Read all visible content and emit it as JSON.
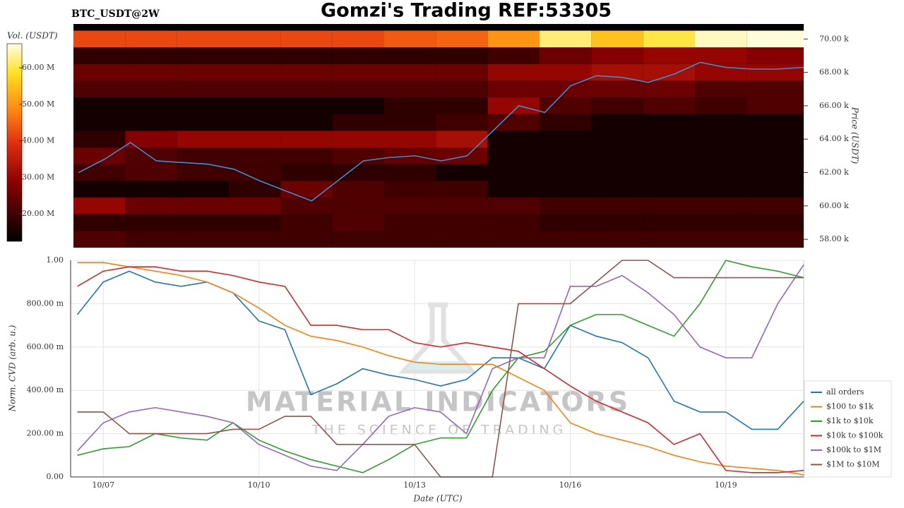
{
  "chart_data": [
    {
      "type": "heatmap",
      "title": "Gomzi's Trading REF:53305",
      "subtitle": "BTC_USDT@2W",
      "ylabel": "Price (USDT)",
      "xlim": [
        6.4,
        20.5
      ],
      "ylim": [
        57.5,
        70.9
      ],
      "yticks": [
        {
          "value": 58,
          "label": "58.00 k"
        },
        {
          "value": 60,
          "label": "60.00 k"
        },
        {
          "value": 62,
          "label": "62.00 k"
        },
        {
          "value": 64,
          "label": "64.00 k"
        },
        {
          "value": 66,
          "label": "66.00 k"
        },
        {
          "value": 68,
          "label": "68.00 k"
        },
        {
          "value": 70,
          "label": "70.00 k"
        }
      ],
      "xbins": [
        6.4,
        7.4,
        8.4,
        9.4,
        10.4,
        11.4,
        12.4,
        13.4,
        14.4,
        15.4,
        16.4,
        17.4,
        18.4,
        19.4,
        20.5
      ],
      "ybins": [
        57.5,
        58.5,
        59.5,
        60.5,
        61.5,
        62.5,
        63.5,
        64.5,
        65.5,
        66.5,
        67.5,
        68.5,
        69.5,
        70.5
      ],
      "z": [
        [
          22,
          20,
          20,
          20,
          20,
          20,
          20,
          20,
          20,
          20,
          20,
          20,
          20,
          20
        ],
        [
          18,
          18,
          18,
          18,
          20,
          22,
          20,
          20,
          20,
          18,
          18,
          18,
          18,
          18
        ],
        [
          30,
          25,
          25,
          25,
          22,
          22,
          22,
          22,
          22,
          20,
          20,
          20,
          20,
          20
        ],
        [
          15,
          15,
          15,
          18,
          25,
          22,
          20,
          20,
          15,
          15,
          15,
          15,
          15,
          15
        ],
        [
          20,
          22,
          20,
          20,
          18,
          18,
          18,
          15,
          15,
          15,
          15,
          15,
          15,
          15
        ],
        [
          25,
          22,
          20,
          20,
          20,
          22,
          24,
          25,
          15,
          15,
          15,
          15,
          15,
          15
        ],
        [
          18,
          28,
          30,
          30,
          30,
          30,
          30,
          32,
          15,
          15,
          15,
          15,
          15,
          15
        ],
        [
          15,
          15,
          15,
          15,
          15,
          18,
          18,
          20,
          22,
          18,
          15,
          15,
          15,
          15
        ],
        [
          15,
          15,
          15,
          15,
          15,
          15,
          18,
          18,
          30,
          22,
          20,
          22,
          20,
          22
        ],
        [
          22,
          22,
          22,
          22,
          22,
          22,
          22,
          22,
          25,
          25,
          25,
          25,
          22,
          22
        ],
        [
          25,
          25,
          25,
          25,
          25,
          25,
          25,
          25,
          30,
          30,
          32,
          32,
          30,
          30
        ],
        [
          18,
          18,
          18,
          18,
          18,
          18,
          18,
          18,
          20,
          25,
          28,
          30,
          30,
          28
        ],
        [
          42,
          42,
          42,
          42,
          42,
          42,
          44,
          45,
          50,
          62,
          55,
          60,
          65,
          66
        ]
      ],
      "colorbar": {
        "label": "Vol. (USDT)",
        "clim": [
          12.5,
          66.6
        ],
        "ticks": [
          {
            "value": 20,
            "label": "20.00 M"
          },
          {
            "value": 30,
            "label": "30.00 M"
          },
          {
            "value": 40,
            "label": "40.00 M"
          },
          {
            "value": 50,
            "label": "50.00 M"
          },
          {
            "value": 60,
            "label": "60.00 M"
          }
        ]
      },
      "x": [
        6.5,
        7,
        7.5,
        8,
        8.5,
        9,
        9.5,
        10,
        10.5,
        11,
        11.5,
        12,
        12.5,
        13,
        13.5,
        14,
        14.5,
        15,
        15.5,
        16,
        16.5,
        17,
        17.5,
        18,
        18.5,
        19,
        19.5,
        20,
        20.5
      ],
      "line": {
        "color": "#3a8fd0",
        "values": [
          62.0,
          62.8,
          63.8,
          62.7,
          62.6,
          62.5,
          62.2,
          61.5,
          60.9,
          60.3,
          61.5,
          62.7,
          62.9,
          63.0,
          62.7,
          63.0,
          64.5,
          66.0,
          65.6,
          67.2,
          67.8,
          67.7,
          67.4,
          67.9,
          68.6,
          68.3,
          68.2,
          68.2,
          68.3
        ]
      }
    },
    {
      "type": "line",
      "xlabel": "Date (UTC)",
      "ylabel": "Norm. CVD (arb. u.)",
      "annotations": [
        "MATERIAL INDICATORS",
        "THE SCIENCE OF TRADING"
      ],
      "xlim": [
        6.37,
        20.5
      ],
      "ylim": [
        0,
        1
      ],
      "grid": true,
      "legend": "lower right",
      "xticks": [
        {
          "value": 7,
          "label": "10/07"
        },
        {
          "value": 10,
          "label": "10/10"
        },
        {
          "value": 13,
          "label": "10/13"
        },
        {
          "value": 16,
          "label": "10/16"
        },
        {
          "value": 19,
          "label": "10/19"
        }
      ],
      "yticks": [
        {
          "value": 0,
          "label": "0.00"
        },
        {
          "value": 0.2,
          "label": "200.00 m"
        },
        {
          "value": 0.4,
          "label": "400.00 m"
        },
        {
          "value": 0.6,
          "label": "600.00 m"
        },
        {
          "value": 0.8,
          "label": "800.00 m"
        },
        {
          "value": 1,
          "label": "1.00"
        }
      ],
      "x": [
        6.5,
        7,
        7.5,
        8,
        8.5,
        9,
        9.5,
        10,
        10.5,
        11,
        11.5,
        12,
        12.5,
        13,
        13.5,
        14,
        14.5,
        15,
        15.5,
        16,
        16.5,
        17,
        17.5,
        18,
        18.5,
        19,
        19.5,
        20,
        20.5
      ],
      "series": [
        {
          "name": "all orders",
          "color": "#1f77b4",
          "values": [
            0.75,
            0.9,
            0.95,
            0.9,
            0.88,
            0.9,
            0.85,
            0.72,
            0.68,
            0.38,
            0.43,
            0.5,
            0.47,
            0.45,
            0.42,
            0.45,
            0.55,
            0.55,
            0.5,
            0.7,
            0.65,
            0.62,
            0.55,
            0.35,
            0.3,
            0.3,
            0.22,
            0.22,
            0.35
          ]
        },
        {
          "name": "$100 to $1k",
          "color": "#ff7f0e",
          "values": [
            0.99,
            0.99,
            0.97,
            0.95,
            0.93,
            0.9,
            0.85,
            0.78,
            0.7,
            0.65,
            0.63,
            0.6,
            0.56,
            0.53,
            0.52,
            0.52,
            0.52,
            0.46,
            0.4,
            0.25,
            0.2,
            0.17,
            0.14,
            0.1,
            0.07,
            0.05,
            0.04,
            0.03,
            0.01
          ]
        },
        {
          "name": "$1k to $10k",
          "color": "#2ca02c",
          "values": [
            0.1,
            0.13,
            0.14,
            0.2,
            0.18,
            0.17,
            0.25,
            0.17,
            0.12,
            0.08,
            0.05,
            0.02,
            0.08,
            0.15,
            0.18,
            0.18,
            0.4,
            0.55,
            0.58,
            0.7,
            0.75,
            0.75,
            0.7,
            0.65,
            0.8,
            1.0,
            0.97,
            0.95,
            0.92
          ]
        },
        {
          "name": "$10k to $100k",
          "color": "#d62728",
          "values": [
            0.88,
            0.95,
            0.97,
            0.97,
            0.95,
            0.95,
            0.93,
            0.9,
            0.88,
            0.7,
            0.7,
            0.68,
            0.68,
            0.62,
            0.6,
            0.62,
            0.6,
            0.58,
            0.5,
            0.42,
            0.35,
            0.3,
            0.25,
            0.15,
            0.2,
            0.03,
            0.02,
            0.02,
            0.03
          ]
        },
        {
          "name": "$100k to $1M",
          "color": "#9467bd",
          "values": [
            0.12,
            0.25,
            0.3,
            0.32,
            0.3,
            0.28,
            0.25,
            0.15,
            0.1,
            0.05,
            0.03,
            0.15,
            0.28,
            0.32,
            0.3,
            0.2,
            0.5,
            0.55,
            0.55,
            0.88,
            0.88,
            0.93,
            0.85,
            0.75,
            0.6,
            0.55,
            0.55,
            0.8,
            0.98
          ]
        },
        {
          "name": "$1M to $10M",
          "color": "#8c564b",
          "values": [
            0.3,
            0.3,
            0.2,
            0.2,
            0.2,
            0.2,
            0.22,
            0.22,
            0.28,
            0.28,
            0.15,
            0.15,
            0.15,
            0.15,
            0.0,
            0.0,
            0.0,
            0.8,
            0.8,
            0.8,
            0.9,
            1.0,
            1.0,
            0.92,
            0.92,
            0.92,
            0.92,
            0.92,
            0.92
          ]
        }
      ]
    }
  ]
}
